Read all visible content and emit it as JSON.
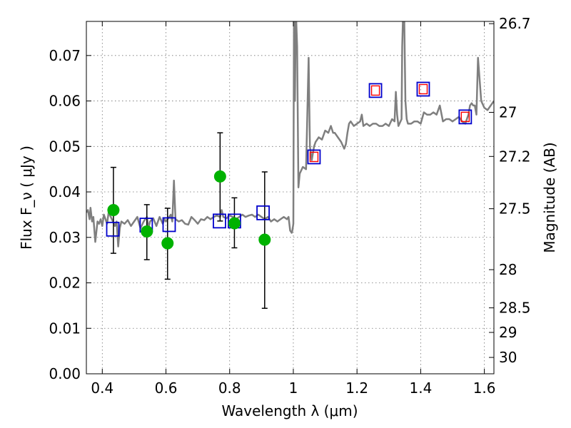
{
  "chart_data": {
    "type": "line",
    "title": "",
    "xlabel": "Wavelength  λ (μm)",
    "ylabel": "Flux  F_ν  ( μJy )",
    "y2label": "Magnitude (AB)",
    "xlim": [
      0.35,
      1.63
    ],
    "ylim": [
      0.0,
      0.0775
    ],
    "grid": true,
    "legend": "none",
    "x_ticks": [
      {
        "value": 0.4,
        "label": "0.4"
      },
      {
        "value": 0.6,
        "label": "0.6"
      },
      {
        "value": 0.8,
        "label": "0.8"
      },
      {
        "value": 1.0,
        "label": "1"
      },
      {
        "value": 1.2,
        "label": "1.2"
      },
      {
        "value": 1.4,
        "label": "1.4"
      },
      {
        "value": 1.6,
        "label": "1.6"
      }
    ],
    "y_ticks": [
      {
        "value": 0.0,
        "label": "0.00"
      },
      {
        "value": 0.01,
        "label": "0.01"
      },
      {
        "value": 0.02,
        "label": "0.02"
      },
      {
        "value": 0.03,
        "label": "0.03"
      },
      {
        "value": 0.04,
        "label": "0.04"
      },
      {
        "value": 0.05,
        "label": "0.05"
      },
      {
        "value": 0.06,
        "label": "0.06"
      },
      {
        "value": 0.07,
        "label": "0.07"
      }
    ],
    "y2_ticks": [
      {
        "flux": 0.077,
        "label": "26.7"
      },
      {
        "flux": 0.0575,
        "label": "27"
      },
      {
        "flux": 0.0478,
        "label": "27.2"
      },
      {
        "flux": 0.0363,
        "label": "27.5"
      },
      {
        "flux": 0.0229,
        "label": "28"
      },
      {
        "flux": 0.0145,
        "label": "28.5"
      },
      {
        "flux": 0.0091,
        "label": "29"
      },
      {
        "flux": 0.0036,
        "label": "30"
      }
    ],
    "spectrum": {
      "color": "#7f7f7f",
      "x": [
        0.35,
        0.355,
        0.36,
        0.363,
        0.368,
        0.372,
        0.378,
        0.385,
        0.39,
        0.395,
        0.4,
        0.405,
        0.41,
        0.415,
        0.42,
        0.43,
        0.44,
        0.445,
        0.45,
        0.455,
        0.46,
        0.47,
        0.48,
        0.49,
        0.5,
        0.51,
        0.52,
        0.53,
        0.54,
        0.545,
        0.55,
        0.56,
        0.57,
        0.58,
        0.59,
        0.595,
        0.6,
        0.61,
        0.615,
        0.62,
        0.625,
        0.63,
        0.64,
        0.65,
        0.66,
        0.67,
        0.68,
        0.69,
        0.7,
        0.71,
        0.72,
        0.73,
        0.74,
        0.75,
        0.76,
        0.77,
        0.775,
        0.78,
        0.79,
        0.8,
        0.81,
        0.82,
        0.83,
        0.84,
        0.85,
        0.86,
        0.87,
        0.88,
        0.89,
        0.9,
        0.91,
        0.92,
        0.93,
        0.94,
        0.95,
        0.96,
        0.97,
        0.98,
        0.985,
        0.99,
        0.995,
        0.997,
        1.0,
        1.002,
        1.005,
        1.008,
        1.012,
        1.016,
        1.02,
        1.03,
        1.04,
        1.045,
        1.048,
        1.052,
        1.058,
        1.065,
        1.07,
        1.08,
        1.09,
        1.1,
        1.11,
        1.118,
        1.125,
        1.13,
        1.14,
        1.15,
        1.16,
        1.165,
        1.17,
        1.175,
        1.18,
        1.19,
        1.2,
        1.21,
        1.215,
        1.22,
        1.23,
        1.24,
        1.25,
        1.26,
        1.27,
        1.28,
        1.29,
        1.3,
        1.31,
        1.318,
        1.322,
        1.326,
        1.33,
        1.34,
        1.342,
        1.345,
        1.348,
        1.352,
        1.356,
        1.36,
        1.37,
        1.38,
        1.39,
        1.4,
        1.41,
        1.42,
        1.43,
        1.44,
        1.45,
        1.46,
        1.47,
        1.48,
        1.49,
        1.5,
        1.51,
        1.52,
        1.53,
        1.54,
        1.55,
        1.555,
        1.56,
        1.565,
        1.57,
        1.575,
        1.58,
        1.59,
        1.6,
        1.61,
        1.62,
        1.63
      ],
      "y": [
        0.0355,
        0.036,
        0.034,
        0.0365,
        0.0335,
        0.0345,
        0.029,
        0.0335,
        0.033,
        0.034,
        0.0325,
        0.035,
        0.034,
        0.033,
        0.0355,
        0.034,
        0.0325,
        0.0335,
        0.028,
        0.032,
        0.0335,
        0.033,
        0.0338,
        0.0325,
        0.0335,
        0.0345,
        0.032,
        0.0335,
        0.0345,
        0.032,
        0.0335,
        0.0342,
        0.0325,
        0.0345,
        0.033,
        0.034,
        0.0335,
        0.0345,
        0.035,
        0.0335,
        0.0425,
        0.034,
        0.0335,
        0.0338,
        0.033,
        0.0328,
        0.0345,
        0.0338,
        0.033,
        0.034,
        0.0338,
        0.0345,
        0.034,
        0.0345,
        0.0348,
        0.0345,
        0.036,
        0.0345,
        0.0342,
        0.0348,
        0.0345,
        0.034,
        0.0345,
        0.035,
        0.0345,
        0.0348,
        0.035,
        0.0345,
        0.035,
        0.0345,
        0.034,
        0.0345,
        0.0335,
        0.034,
        0.0335,
        0.034,
        0.0345,
        0.034,
        0.0345,
        0.0315,
        0.031,
        0.0315,
        0.033,
        0.08,
        0.06,
        0.08,
        0.072,
        0.041,
        0.044,
        0.0455,
        0.045,
        0.06,
        0.0695,
        0.05,
        0.047,
        0.05,
        0.051,
        0.052,
        0.0515,
        0.0535,
        0.053,
        0.0545,
        0.053,
        0.053,
        0.052,
        0.051,
        0.0495,
        0.0505,
        0.053,
        0.055,
        0.0555,
        0.0545,
        0.055,
        0.0555,
        0.057,
        0.0545,
        0.055,
        0.0545,
        0.055,
        0.055,
        0.0545,
        0.0545,
        0.055,
        0.0545,
        0.056,
        0.0555,
        0.062,
        0.057,
        0.0545,
        0.056,
        0.072,
        0.08,
        0.08,
        0.06,
        0.056,
        0.055,
        0.055,
        0.0555,
        0.0555,
        0.055,
        0.0575,
        0.057,
        0.057,
        0.0575,
        0.057,
        0.059,
        0.0555,
        0.056,
        0.056,
        0.0555,
        0.056,
        0.0565,
        0.0555,
        0.055,
        0.057,
        0.059,
        0.0595,
        0.059,
        0.059,
        0.057,
        0.0695,
        0.06,
        0.0585,
        0.058,
        0.059,
        0.06
      ]
    },
    "green_points": {
      "color": "#00b200",
      "x": [
        0.435,
        0.54,
        0.605,
        0.77,
        0.815,
        0.91
      ],
      "y": [
        0.036,
        0.0313,
        0.0287,
        0.0434,
        0.0331,
        0.0295
      ],
      "err": [
        [
          0.0265,
          0.0454
        ],
        [
          0.0251,
          0.0372
        ],
        [
          0.0208,
          0.0364
        ],
        [
          0.0336,
          0.053
        ],
        [
          0.0277,
          0.0387
        ],
        [
          0.0144,
          0.0444
        ]
      ]
    },
    "blue_squares": {
      "color": "#0000cc",
      "x": [
        0.433,
        0.538,
        0.61,
        0.768,
        0.815,
        0.905,
        1.065,
        1.258,
        1.408,
        1.54
      ],
      "y": [
        0.0318,
        0.0327,
        0.0328,
        0.0336,
        0.0336,
        0.0354,
        0.0477,
        0.0623,
        0.0626,
        0.0565
      ]
    },
    "red_squares": {
      "color": "#ff0000",
      "x": [
        1.065,
        1.258,
        1.408,
        1.54
      ],
      "y": [
        0.0477,
        0.0623,
        0.0626,
        0.0565
      ]
    }
  }
}
